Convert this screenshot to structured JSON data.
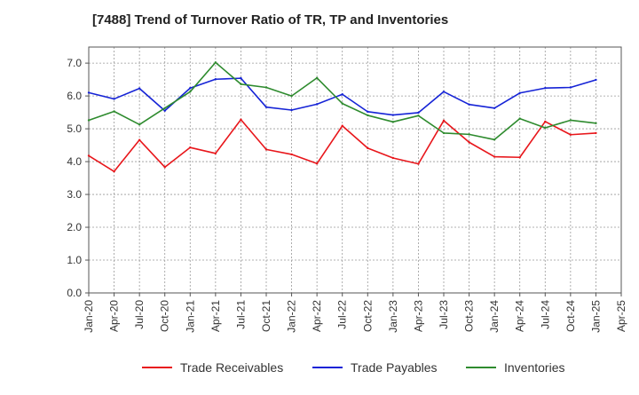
{
  "chart_data": {
    "type": "line",
    "title": "[7488]  Trend of Turnover Ratio of TR, TP and Inventories",
    "xlabel": "",
    "ylabel": "",
    "ylim": [
      0.0,
      7.0
    ],
    "y_ticks": [
      "0.0",
      "1.0",
      "2.0",
      "3.0",
      "4.0",
      "5.0",
      "6.0",
      "7.0"
    ],
    "x_ticks": [
      "Jan-20",
      "Apr-20",
      "Jul-20",
      "Oct-20",
      "Jan-21",
      "Apr-21",
      "Jul-21",
      "Oct-21",
      "Jan-22",
      "Apr-22",
      "Jul-22",
      "Oct-22",
      "Jan-23",
      "Apr-23",
      "Jul-23",
      "Oct-23",
      "Jan-24",
      "Apr-24",
      "Jul-24",
      "Oct-24",
      "Jan-25",
      "Apr-25"
    ],
    "grid": true,
    "legend_position": "bottom",
    "categories": [
      "Jan-20",
      "Apr-20",
      "Jul-20",
      "Oct-20",
      "Jan-21",
      "Apr-21",
      "Jul-21",
      "Oct-21",
      "Jan-22",
      "Apr-22",
      "Jul-22",
      "Oct-22",
      "Jan-23",
      "Apr-23",
      "Jul-23",
      "Oct-23",
      "Jan-24",
      "Apr-24",
      "Jul-24",
      "Oct-24",
      "Jan-25"
    ],
    "series": [
      {
        "name": "Trade Receivables",
        "color": "#e8161b",
        "values": [
          4.18,
          3.7,
          4.66,
          3.83,
          4.43,
          4.25,
          5.28,
          4.37,
          4.22,
          3.94,
          5.09,
          4.41,
          4.11,
          3.93,
          5.25,
          4.59,
          4.15,
          4.13,
          5.22,
          4.82,
          4.87
        ]
      },
      {
        "name": "Trade Payables",
        "color": "#1523d6",
        "values": [
          6.1,
          5.91,
          6.23,
          5.55,
          6.24,
          6.51,
          6.54,
          5.66,
          5.57,
          5.75,
          6.05,
          5.52,
          5.42,
          5.49,
          6.13,
          5.74,
          5.63,
          6.09,
          6.24,
          6.26,
          6.49
        ]
      },
      {
        "name": "Inventories",
        "color": "#2e8b2e",
        "values": [
          5.26,
          5.53,
          5.13,
          5.63,
          6.13,
          7.02,
          6.36,
          6.26,
          6.0,
          6.55,
          5.77,
          5.41,
          5.21,
          5.4,
          4.87,
          4.83,
          4.67,
          5.31,
          5.03,
          5.26,
          5.17
        ]
      }
    ]
  }
}
